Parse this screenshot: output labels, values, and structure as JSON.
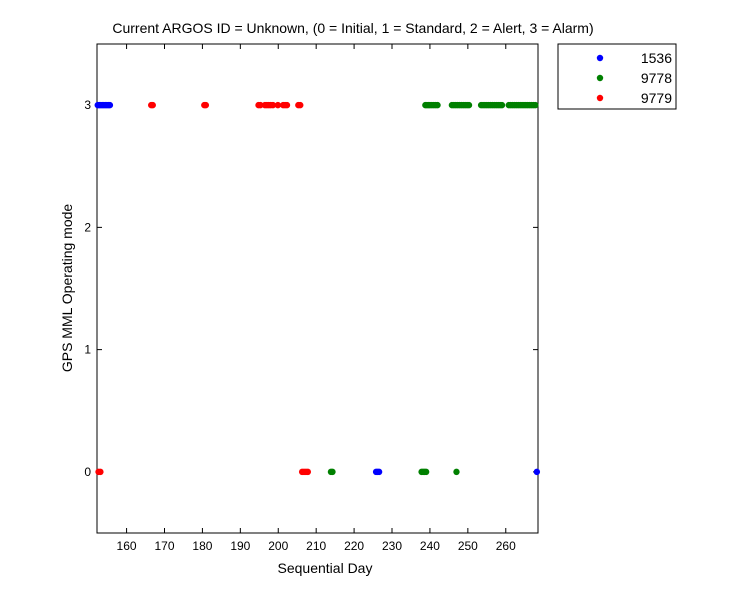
{
  "chart_data": {
    "type": "scatter",
    "title": "Current ARGOS ID = Unknown, (0 = Initial, 1 = Standard, 2 = Alert, 3 = Alarm)",
    "xlabel": "Sequential Day",
    "ylabel": "GPS MML Operating mode",
    "xlim": [
      152.2,
      268.5
    ],
    "ylim": [
      -0.5,
      3.5
    ],
    "xticks": [
      160,
      170,
      180,
      190,
      200,
      210,
      220,
      230,
      240,
      250,
      260
    ],
    "yticks": [
      0,
      1,
      2,
      3
    ],
    "grid": false,
    "legend_position": "outside-top-right",
    "series": [
      {
        "name": "1536",
        "color": "#0000ff",
        "x": [
          152.4,
          152.8,
          153.2,
          153.6,
          154.0,
          154.4,
          154.8,
          155.2,
          155.6,
          225.8,
          226.2,
          226.6,
          268.2
        ],
        "y": [
          3,
          3,
          3,
          3,
          3,
          3,
          3,
          3,
          3,
          0,
          0,
          0,
          0
        ]
      },
      {
        "name": "9778",
        "color": "#008000",
        "x": [
          213.9,
          214.3,
          237.8,
          238.2,
          238.6,
          239.0,
          238.8,
          239.2,
          239.6,
          240.0,
          240.5,
          241.0,
          241.5,
          242.0,
          247.0,
          245.8,
          246.3,
          246.8,
          247.3,
          247.8,
          248.3,
          248.8,
          249.3,
          249.8,
          250.3,
          253.5,
          254.0,
          254.5,
          255.0,
          255.5,
          256.0,
          256.5,
          257.0,
          257.5,
          258.0,
          258.5,
          259.0,
          260.8,
          261.3,
          261.8,
          262.3,
          262.8,
          263.3,
          263.8,
          264.3,
          264.8,
          265.3,
          265.8,
          266.3,
          266.8,
          267.3,
          267.8
        ],
        "y": [
          0,
          0,
          0,
          0,
          0,
          0,
          3,
          3,
          3,
          3,
          3,
          3,
          3,
          3,
          0,
          3,
          3,
          3,
          3,
          3,
          3,
          3,
          3,
          3,
          3,
          3,
          3,
          3,
          3,
          3,
          3,
          3,
          3,
          3,
          3,
          3,
          3,
          3,
          3,
          3,
          3,
          3,
          3,
          3,
          3,
          3,
          3,
          3,
          3,
          3,
          3,
          3
        ]
      },
      {
        "name": "9779",
        "color": "#ff0000",
        "x": [
          152.6,
          153.1,
          166.5,
          166.9,
          180.5,
          180.9,
          194.8,
          195.3,
          196.5,
          197.0,
          197.5,
          198.0,
          198.6,
          199.9,
          201.3,
          201.8,
          202.3,
          205.3,
          205.8,
          206.3,
          206.8,
          207.3,
          207.8
        ],
        "y": [
          0,
          0,
          3,
          3,
          3,
          3,
          3,
          3,
          3,
          3,
          3,
          3,
          3,
          3,
          3,
          3,
          3,
          3,
          3,
          0,
          0,
          0,
          0
        ]
      }
    ]
  }
}
